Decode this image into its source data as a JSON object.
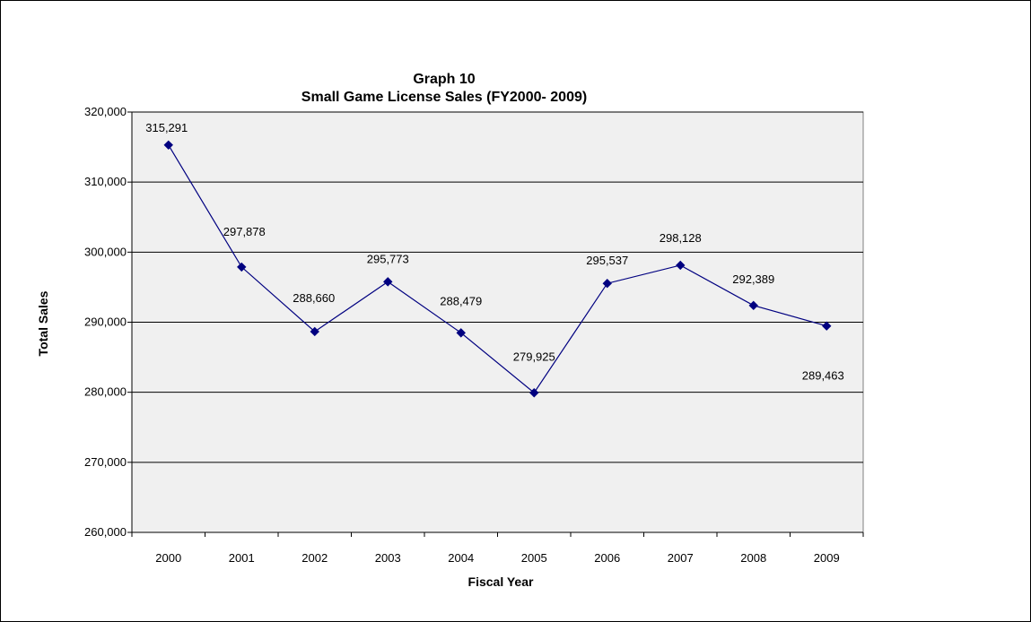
{
  "chart_data": {
    "type": "line",
    "title": "Graph 10",
    "subtitle": "Small Game License Sales (FY2000- 2009)",
    "xlabel": "Fiscal Year",
    "ylabel": "Total Sales",
    "categories": [
      "2000",
      "2001",
      "2002",
      "2003",
      "2004",
      "2005",
      "2006",
      "2007",
      "2008",
      "2009"
    ],
    "values": [
      315291,
      297878,
      288660,
      295773,
      288479,
      279925,
      295537,
      298128,
      292389,
      289463
    ],
    "value_labels": [
      "315,291",
      "297,878",
      "288,660",
      "295,773",
      "288,479",
      "279,925",
      "295,537",
      "298,128",
      "292,389",
      "289,463"
    ],
    "ylim": [
      260000,
      320000
    ],
    "yticks": [
      260000,
      270000,
      280000,
      290000,
      300000,
      310000,
      320000
    ],
    "ytick_labels": [
      "260,000",
      "270,000",
      "280,000",
      "290,000",
      "300,000",
      "310,000",
      "320,000"
    ],
    "grid": true,
    "legend": "none",
    "colors": {
      "series": "#000080",
      "plot_bg": "#f0f0f0",
      "grid": "#000000"
    }
  }
}
